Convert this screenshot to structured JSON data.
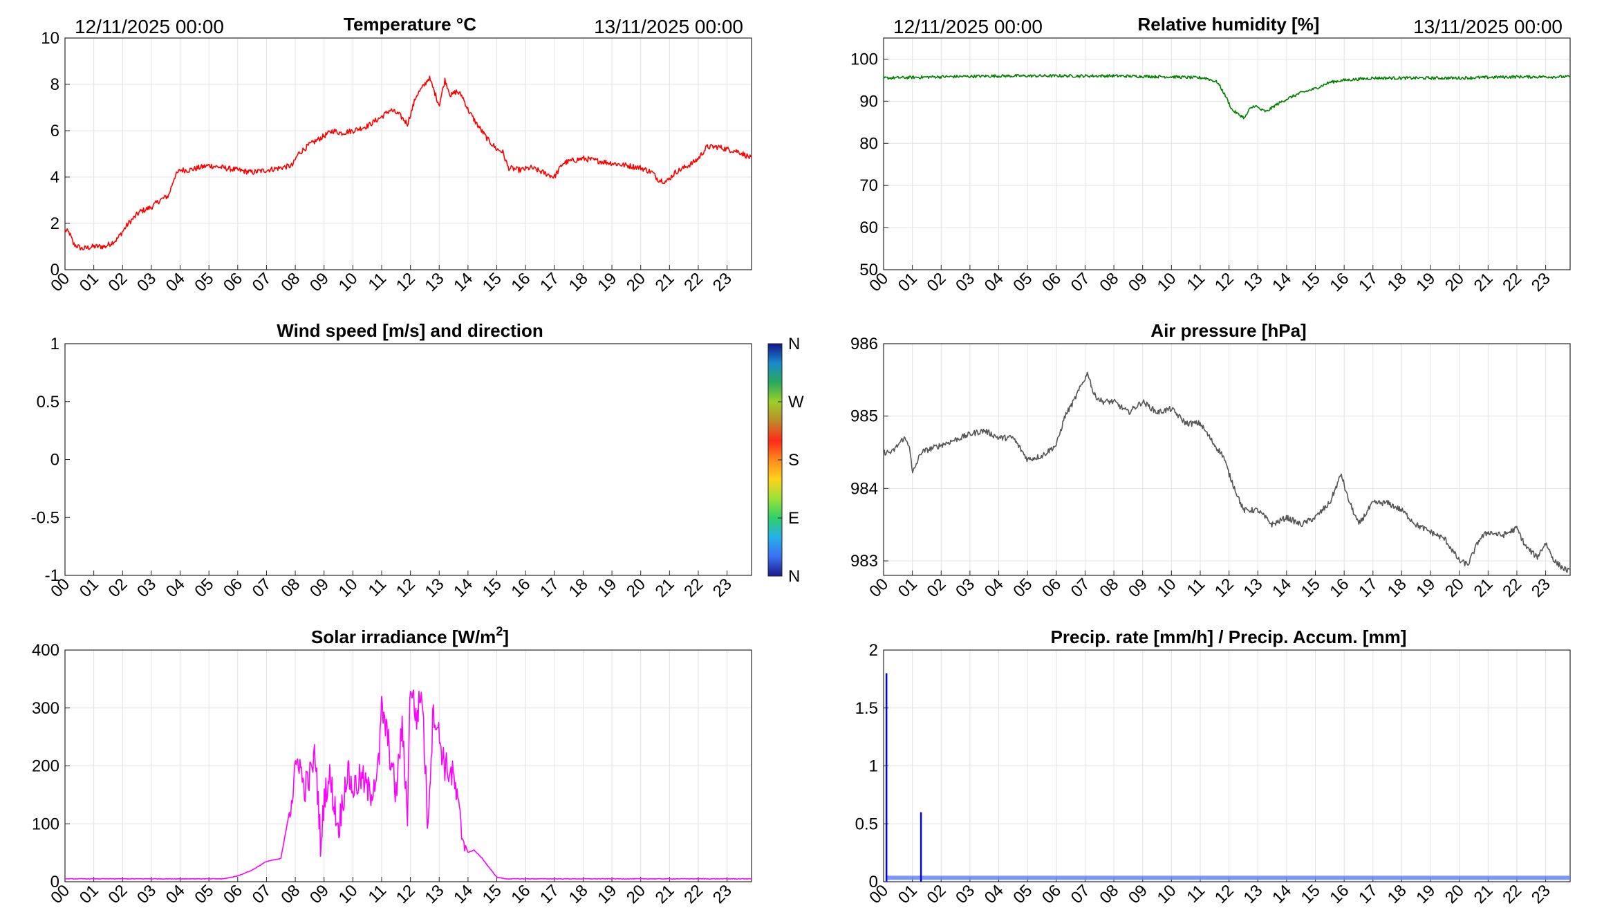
{
  "hour_labels": [
    "00",
    "01",
    "02",
    "03",
    "04",
    "05",
    "06",
    "07",
    "08",
    "09",
    "10",
    "11",
    "12",
    "13",
    "14",
    "15",
    "16",
    "17",
    "18",
    "19",
    "20",
    "21",
    "22",
    "23"
  ],
  "date_start": "12/11/2025 00:00",
  "date_end": "13/11/2025 00:00",
  "colorbar": {
    "labels": [
      "N",
      "W",
      "S",
      "E",
      "N"
    ],
    "colors": [
      "#1a1a8c",
      "#3b6ff0",
      "#25b0e8",
      "#2fcf6a",
      "#9be03a",
      "#ffd21a",
      "#ff8a1c",
      "#ff2a1a",
      "#c08a2a",
      "#9bd02a",
      "#2aa85a",
      "#1a8acc",
      "#14148c"
    ]
  },
  "chart_data": [
    {
      "id": "temperature",
      "type": "line",
      "title": "Temperature °C",
      "color": "#ff0000",
      "ylim": [
        0,
        10
      ],
      "yticks": [
        0,
        2,
        4,
        6,
        8,
        10
      ],
      "ytick_labels": [
        "0",
        "2",
        "4",
        "6",
        "8",
        "10"
      ],
      "grid": true,
      "x": [
        0,
        0.15,
        0.3,
        0.6,
        1.0,
        1.4,
        1.8,
        2.2,
        2.6,
        3.0,
        3.3,
        3.6,
        3.8,
        4.0,
        4.3,
        5.0,
        5.5,
        6.0,
        6.5,
        7.0,
        7.5,
        7.9,
        8.1,
        8.5,
        8.9,
        9.3,
        9.6,
        10.0,
        10.5,
        11.0,
        11.3,
        11.6,
        11.9,
        12.2,
        12.5,
        12.65,
        12.8,
        13.0,
        13.2,
        13.4,
        13.6,
        13.8,
        14.0,
        14.3,
        14.7,
        15.0,
        15.2,
        15.4,
        15.8,
        16.2,
        16.6,
        17.0,
        17.3,
        17.6,
        18.0,
        18.5,
        19.0,
        19.5,
        20.0,
        20.4,
        20.6,
        20.9,
        21.2,
        21.5,
        21.8,
        22.0,
        22.3,
        22.7,
        23.0,
        23.4,
        23.85
      ],
      "y": [
        1.7,
        1.6,
        1.1,
        0.9,
        1.0,
        1.0,
        1.3,
        2.0,
        2.5,
        2.7,
        3.0,
        3.2,
        4.0,
        4.3,
        4.3,
        4.5,
        4.4,
        4.3,
        4.2,
        4.3,
        4.4,
        4.5,
        5.0,
        5.4,
        5.7,
        6.0,
        5.9,
        6.0,
        6.2,
        6.6,
        6.9,
        6.7,
        6.3,
        7.5,
        8.0,
        8.3,
        7.8,
        7.1,
        8.2,
        7.5,
        7.7,
        7.5,
        6.9,
        6.3,
        5.6,
        5.2,
        5.1,
        4.4,
        4.3,
        4.4,
        4.2,
        4.0,
        4.6,
        4.7,
        4.8,
        4.7,
        4.6,
        4.5,
        4.4,
        4.2,
        3.9,
        3.8,
        4.2,
        4.4,
        4.6,
        4.8,
        5.3,
        5.3,
        5.2,
        5.1,
        4.8
      ],
      "noise": 0.12
    },
    {
      "id": "humidity",
      "type": "line",
      "title": "Relative humidity [%]",
      "color": "#008000",
      "ylim": [
        50,
        105
      ],
      "yticks": [
        50,
        60,
        70,
        80,
        90,
        100
      ],
      "ytick_labels": [
        "50",
        "60",
        "70",
        "80",
        "90",
        "100"
      ],
      "grid": true,
      "x": [
        0,
        2,
        4,
        6,
        8,
        10,
        11.2,
        11.6,
        11.9,
        12.1,
        12.3,
        12.55,
        12.7,
        12.9,
        13.1,
        13.3,
        13.6,
        14.0,
        14.5,
        15.0,
        15.5,
        16.0,
        17.0,
        18.0,
        20.0,
        22.0,
        23.85
      ],
      "y": [
        95.5,
        95.8,
        96,
        96,
        96,
        95.8,
        95.5,
        94.5,
        91,
        88,
        87,
        86,
        88,
        89,
        88,
        87.5,
        89,
        90.5,
        92,
        93,
        94.5,
        95,
        95.5,
        95.5,
        95.5,
        95.8,
        95.8
      ],
      "noise": 0.35
    },
    {
      "id": "wind",
      "type": "scatter",
      "title": "Wind speed [m/s] and direction",
      "color": "#000000",
      "ylim": [
        -1,
        1
      ],
      "yticks": [
        -1,
        -0.5,
        0,
        0.5,
        1
      ],
      "ytick_labels": [
        "-1",
        "-0.5",
        "0",
        "0.5",
        "1"
      ],
      "grid": false,
      "x": [],
      "y": []
    },
    {
      "id": "pressure",
      "type": "line",
      "title": "Air pressure [hPa]",
      "color": "#555555",
      "ylim": [
        982.8,
        986
      ],
      "yticks": [
        983,
        984,
        985,
        986
      ],
      "ytick_labels": [
        "983",
        "984",
        "985",
        "986"
      ],
      "grid": true,
      "x": [
        0,
        0.3,
        0.7,
        0.9,
        1.0,
        1.3,
        2.0,
        3.0,
        3.5,
        4.0,
        4.5,
        5.0,
        5.5,
        6.0,
        6.3,
        6.6,
        6.9,
        7.1,
        7.3,
        7.6,
        8.0,
        8.5,
        9.0,
        9.5,
        10.0,
        10.5,
        11.0,
        11.5,
        11.8,
        12.0,
        12.5,
        13.0,
        13.5,
        14.0,
        14.5,
        15.0,
        15.5,
        15.9,
        16.1,
        16.5,
        17.0,
        17.5,
        18.0,
        18.5,
        19.0,
        19.5,
        20.0,
        20.3,
        20.7,
        21.0,
        21.5,
        22.0,
        22.3,
        22.7,
        23.0,
        23.3,
        23.6,
        23.85
      ],
      "y": [
        984.5,
        984.5,
        984.7,
        984.6,
        984.2,
        984.5,
        984.6,
        984.75,
        984.8,
        984.7,
        984.7,
        984.4,
        984.45,
        984.6,
        985.0,
        985.2,
        985.45,
        985.6,
        985.3,
        985.2,
        985.2,
        985.05,
        985.2,
        985.05,
        985.1,
        984.9,
        984.9,
        984.6,
        984.45,
        984.2,
        983.7,
        983.7,
        983.5,
        983.6,
        983.5,
        983.6,
        983.8,
        984.2,
        983.9,
        983.5,
        983.8,
        983.8,
        983.7,
        983.5,
        983.4,
        983.3,
        983.0,
        982.95,
        983.3,
        983.4,
        983.35,
        983.45,
        983.2,
        983.05,
        983.25,
        983.0,
        982.9,
        982.85
      ],
      "noise": 0.04
    },
    {
      "id": "solar",
      "type": "line",
      "title": "Solar irradiance [W/m",
      "title_sup": "2",
      "title_suffix": "]",
      "color": "#ff00ff",
      "ylim": [
        0,
        400
      ],
      "yticks": [
        0,
        100,
        200,
        300,
        400
      ],
      "ytick_labels": [
        "0",
        "100",
        "200",
        "300",
        "400"
      ],
      "grid": true,
      "x": [
        0,
        5.5,
        6.0,
        6.5,
        7.0,
        7.5,
        7.9,
        8.1,
        8.3,
        8.5,
        8.7,
        8.9,
        9.0,
        9.2,
        9.5,
        9.8,
        10.0,
        10.3,
        10.6,
        10.9,
        11.0,
        11.2,
        11.5,
        11.7,
        11.9,
        12.0,
        12.2,
        12.4,
        12.6,
        12.8,
        13.0,
        13.2,
        13.5,
        13.8,
        14.0,
        14.2,
        14.5,
        14.8,
        15.0,
        15.3,
        16.0,
        23.85
      ],
      "y": [
        5,
        5,
        10,
        20,
        35,
        40,
        150,
        220,
        160,
        180,
        220,
        50,
        150,
        180,
        90,
        190,
        160,
        180,
        150,
        200,
        300,
        250,
        150,
        270,
        120,
        350,
        280,
        330,
        100,
        300,
        250,
        200,
        180,
        80,
        50,
        55,
        40,
        20,
        8,
        5,
        5,
        5
      ],
      "noise": 28,
      "noise_range": [
        7.8,
        13.9
      ]
    },
    {
      "id": "precip",
      "type": "line",
      "title": "Precip. rate [mm/h] / Precip. Accum. [mm]",
      "color": "#0000ff",
      "accum_color": "#6e8cf5",
      "ylim": [
        0,
        2
      ],
      "yticks": [
        0,
        0.5,
        1,
        1.5,
        2
      ],
      "ytick_labels": [
        "0",
        "0.5",
        "1",
        "1.5",
        "2"
      ],
      "grid": true,
      "x": [
        0.1,
        1.3
      ],
      "y": [
        1.8,
        0.6
      ],
      "accum_value": 0.04
    }
  ]
}
